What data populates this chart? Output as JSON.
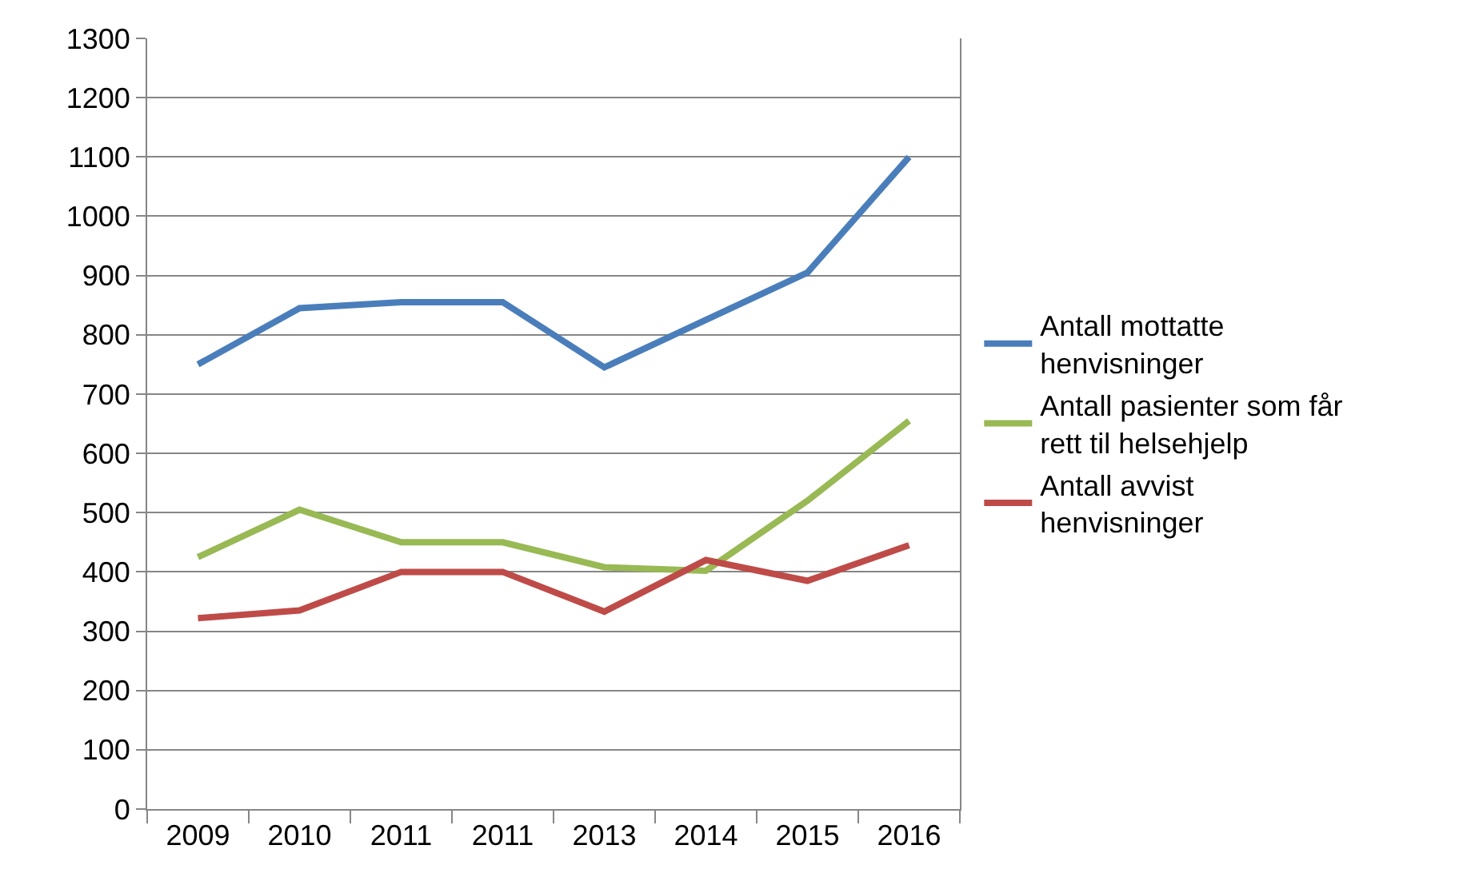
{
  "chart_data": {
    "type": "line",
    "categories": [
      "2009",
      "2010",
      "2011",
      "2011",
      "2013",
      "2014",
      "2015",
      "2016"
    ],
    "series": [
      {
        "name": "Antall mottatte henvisninger",
        "color": "#4a7ebb",
        "values": [
          750,
          845,
          855,
          855,
          745,
          825,
          905,
          1100
        ]
      },
      {
        "name": "Antall pasienter som får rett til helsehjelp",
        "color": "#98b954",
        "values": [
          425,
          505,
          450,
          450,
          408,
          402,
          520,
          655
        ]
      },
      {
        "name": "Antall avvist henvisninger",
        "color": "#be4b48",
        "values": [
          322,
          335,
          400,
          400,
          333,
          420,
          385,
          445
        ]
      }
    ],
    "ylim": [
      0,
      1300
    ],
    "yticks": [
      0,
      100,
      200,
      300,
      400,
      500,
      600,
      700,
      800,
      900,
      1000,
      1100,
      1200,
      1300
    ],
    "grid": "y",
    "legend": "right",
    "marker": "none",
    "line_style": "solid"
  }
}
